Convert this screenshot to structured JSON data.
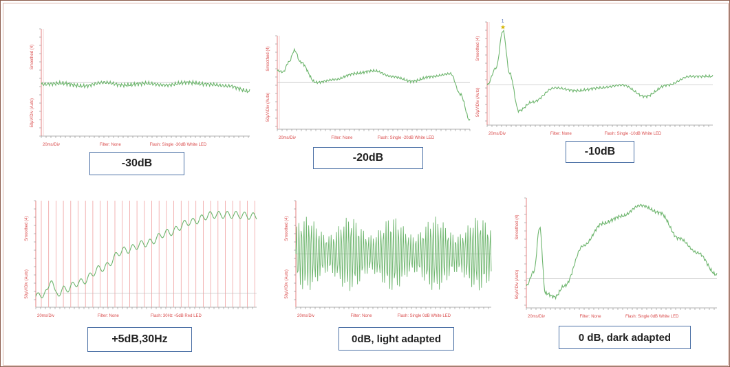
{
  "figure": {
    "panels": [
      {
        "caption": "-30dB",
        "y_top_label": "Smoothed (4)",
        "y_bottom_label": "50μV/Div (Auto)",
        "x_scale_label": "20ms/Div",
        "filter_label": "Filter: None",
        "flash_label": "Flash: Single -30dB White LED"
      },
      {
        "caption": "-20dB",
        "y_top_label": "Smoothed (4)",
        "y_bottom_label": "50μV/Div (Auto)",
        "x_scale_label": "20ms/Div",
        "filter_label": "Filter: None",
        "flash_label": "Flash: Single -20dB White LED"
      },
      {
        "caption": "-10dB",
        "y_top_label": "Smoothed (4)",
        "y_bottom_label": "50μV/Div (Auto)",
        "x_scale_label": "20ms/Div",
        "filter_label": "Filter: None",
        "flash_label": "Flash: Single -10dB White LED",
        "marker_label": "1"
      },
      {
        "caption": "+5dB,30Hz",
        "y_top_label": "Smoothed (4)",
        "y_bottom_label": "50μV/Div (Auto)",
        "x_scale_label": "20ms/Div",
        "filter_label": "Filter: None",
        "flash_label": "Flash: 30Hz +5dB Red LED"
      },
      {
        "caption": "0dB, light adapted",
        "y_top_label": "Smoothed (4)",
        "y_bottom_label": "50μV/Div (Auto)",
        "x_scale_label": "20ms/Div",
        "filter_label": "Filter: None",
        "flash_label": "Flash: Single 0dB White LED"
      },
      {
        "caption": "0 dB, dark adapted",
        "y_top_label": "Smoothed (4)",
        "y_bottom_label": "50μV/Div (Auto)",
        "x_scale_label": "20ms/Div",
        "filter_label": "Filter: None",
        "flash_label": "Flash: Single 0dB White LED"
      }
    ]
  },
  "colors": {
    "trace": "#6db56d",
    "axis": "#e06060",
    "baseline": "#b8b8b8",
    "caption_border": "#4a6fa5",
    "marker": "#d4b400"
  },
  "chart_data": [
    {
      "type": "line",
      "x": [
        0,
        10,
        20,
        30,
        40,
        50,
        60,
        70,
        80,
        90,
        100
      ],
      "y": [
        -2,
        -1,
        -4,
        0,
        -3,
        -1,
        -3,
        0,
        -2,
        -4,
        -10
      ],
      "ylim": [
        -60,
        60
      ],
      "grid": false
    },
    {
      "type": "line",
      "x": [
        0,
        3,
        6,
        9,
        12,
        20,
        30,
        40,
        50,
        60,
        70,
        80,
        90,
        95,
        100
      ],
      "y": [
        20,
        18,
        35,
        55,
        35,
        0,
        5,
        15,
        20,
        10,
        2,
        10,
        15,
        -20,
        -65
      ],
      "ylim": [
        -80,
        80
      ],
      "grid": false
    },
    {
      "type": "line",
      "x": [
        0,
        4,
        7,
        10,
        14,
        20,
        30,
        40,
        50,
        60,
        70,
        80,
        90,
        100
      ],
      "y": [
        0,
        30,
        95,
        20,
        -45,
        -30,
        -5,
        -10,
        -5,
        0,
        -20,
        0,
        15,
        15
      ],
      "ylim": [
        -70,
        110
      ],
      "grid": false
    },
    {
      "type": "line",
      "x": [
        0,
        5,
        7,
        9,
        13,
        20,
        30,
        40,
        50,
        60,
        70,
        80,
        90,
        100
      ],
      "y": [
        -5,
        0,
        22,
        -2,
        5,
        15,
        35,
        60,
        70,
        85,
        100,
        110,
        110,
        108
      ],
      "ylim": [
        -20,
        130
      ],
      "grid": false
    },
    {
      "type": "line",
      "x": [
        0,
        100
      ],
      "y": [
        0,
        0
      ],
      "ylim": [
        -60,
        60
      ],
      "grid": false
    },
    {
      "type": "line",
      "x": [
        0,
        4,
        7,
        10,
        15,
        20,
        30,
        40,
        50,
        60,
        70,
        80,
        90,
        100
      ],
      "y": [
        -10,
        10,
        70,
        -20,
        -25,
        -10,
        45,
        75,
        85,
        100,
        90,
        55,
        35,
        5
      ],
      "ylim": [
        -40,
        110
      ],
      "grid": false
    }
  ]
}
